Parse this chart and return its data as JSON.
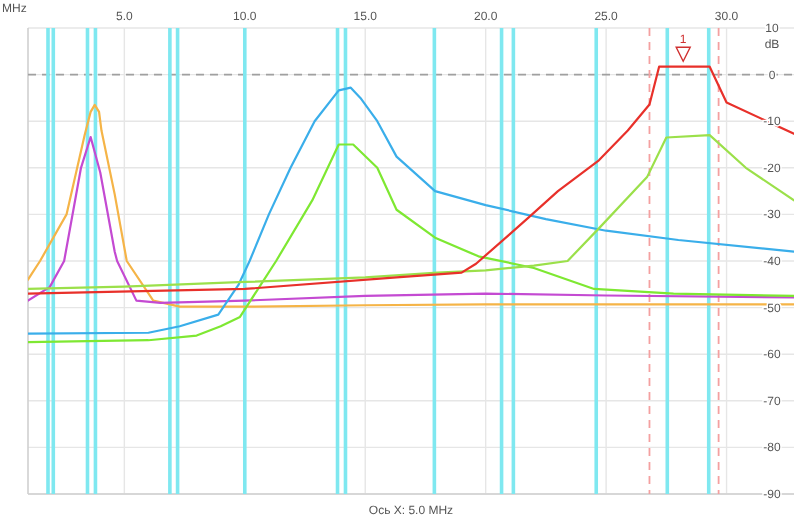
{
  "chart_data": {
    "type": "line",
    "xlabel": "MHz",
    "ylabel": "dB",
    "grid": true,
    "marker": "none",
    "line_style": "solid",
    "xlim": [
      1,
      32.8
    ],
    "ylim": [
      -90,
      10
    ],
    "xticks": [
      {
        "value": 5,
        "label": "5.0"
      },
      {
        "value": 10,
        "label": "10.0"
      },
      {
        "value": 15,
        "label": "15.0"
      },
      {
        "value": 20,
        "label": "20.0"
      },
      {
        "value": 25,
        "label": "25.0"
      },
      {
        "value": 30,
        "label": "30.0"
      }
    ],
    "yticks": [
      -90,
      -80,
      -70,
      -60,
      -50,
      -40,
      -30,
      -20,
      -10,
      0,
      10
    ],
    "series": [
      {
        "color": "#f5b447",
        "x": [
          1,
          1.5,
          2.6,
          3.35,
          3.6,
          3.77,
          3.95,
          4.05,
          4.6,
          5.1,
          6.2,
          7.3,
          10,
          15,
          20,
          25,
          32.8
        ],
        "values": [
          -44,
          -40,
          -30,
          -13,
          -8,
          -6.5,
          -8,
          -12,
          -25.7,
          -40,
          -48.5,
          -49.8,
          -49.8,
          -49.5,
          -49.3,
          -49.3,
          -49.3
        ]
      },
      {
        "color": "#c44ad2",
        "x": [
          1,
          1.9,
          2.5,
          3.2,
          3.6,
          4.0,
          4.6,
          4.7,
          5.5,
          6.5,
          10,
          15,
          20,
          25,
          32.8
        ],
        "values": [
          -48.5,
          -45.6,
          -40,
          -20,
          -13.4,
          -21,
          -38,
          -40,
          -48.5,
          -49,
          -48.5,
          -47.5,
          -47,
          -47.4,
          -47.8
        ]
      },
      {
        "color": "#3aaeea",
        "x": [
          1,
          6,
          7.3,
          8.9,
          9.75,
          10.2,
          11,
          11.9,
          12.9,
          13.9,
          14.4,
          14.8,
          15.5,
          16.3,
          17.9,
          20,
          22.5,
          25,
          28,
          32.8
        ],
        "values": [
          -55.6,
          -55.4,
          -54,
          -51.5,
          -45,
          -40,
          -30,
          -20,
          -10,
          -3.4,
          -2.8,
          -5,
          -10,
          -17.6,
          -25,
          -28,
          -31,
          -33.5,
          -35.5,
          -38
        ]
      },
      {
        "color": "#7ee832",
        "x": [
          1,
          6,
          8,
          9,
          9.8,
          10.6,
          11.3,
          12.8,
          13.9,
          14.5,
          15.5,
          16.3,
          17.9,
          19.7,
          22,
          24.5,
          27.8,
          32.8
        ],
        "values": [
          -57.4,
          -57,
          -56,
          -54,
          -52,
          -45.6,
          -40,
          -27,
          -15,
          -15,
          -20,
          -29,
          -35,
          -39,
          -41.5,
          -46,
          -47,
          -47.5
        ]
      },
      {
        "color": "#9be04a",
        "x": [
          1,
          5,
          10,
          15,
          18,
          20,
          22,
          23.4,
          24.7,
          26.7,
          27.5,
          29.3,
          30.8,
          32.8
        ],
        "values": [
          -46,
          -45.5,
          -44.5,
          -43.5,
          -42.5,
          -42,
          -41,
          -40,
          -33,
          -22,
          -13.5,
          -13,
          -20,
          -27
        ]
      },
      {
        "color": "#e8302a",
        "x": [
          1,
          10,
          16.3,
          19,
          19.6,
          21.8,
          23,
          24.7,
          25.9,
          26.8,
          27.2,
          29.3,
          30,
          32.8
        ],
        "values": [
          -47,
          -46,
          -43.5,
          -42.5,
          -40.6,
          -30.6,
          -25,
          -18.4,
          -12,
          -6.4,
          1.7,
          1.7,
          -6,
          -12.7
        ]
      }
    ],
    "ref_lines": [
      {
        "axis": "y",
        "value": 0,
        "color": "#a0a0a0",
        "line_style": "dashed"
      },
      {
        "axis": "x",
        "value": 1.83,
        "color": "#7fe8f0"
      },
      {
        "axis": "x",
        "value": 2.05,
        "color": "#7fe8f0"
      },
      {
        "axis": "x",
        "value": 3.47,
        "color": "#7fe8f0"
      },
      {
        "axis": "x",
        "value": 3.8,
        "color": "#7fe8f0"
      },
      {
        "axis": "x",
        "value": 6.89,
        "color": "#7fe8f0"
      },
      {
        "axis": "x",
        "value": 7.21,
        "color": "#7fe8f0"
      },
      {
        "axis": "x",
        "value": 10,
        "color": "#7fe8f0"
      },
      {
        "axis": "x",
        "value": 13.85,
        "color": "#7fe8f0"
      },
      {
        "axis": "x",
        "value": 14.18,
        "color": "#7fe8f0"
      },
      {
        "axis": "x",
        "value": 17.87,
        "color": "#7fe8f0"
      },
      {
        "axis": "x",
        "value": 20.66,
        "color": "#7fe8f0"
      },
      {
        "axis": "x",
        "value": 21.15,
        "color": "#7fe8f0"
      },
      {
        "axis": "x",
        "value": 24.59,
        "color": "#7fe8f0"
      },
      {
        "axis": "x",
        "value": 27.54,
        "color": "#7fe8f0"
      },
      {
        "axis": "x",
        "value": 29.26,
        "color": "#7fe8f0"
      },
      {
        "axis": "x",
        "value": 26.8,
        "color": "#f4a0a0",
        "line_style": "dashed"
      },
      {
        "axis": "x",
        "value": 29.67,
        "color": "#f4a0a0",
        "line_style": "dashed"
      }
    ],
    "annotations": [
      {
        "text": "1",
        "x": 28.2,
        "y": 2
      },
      "Ось X: 5.0 MHz"
    ]
  }
}
